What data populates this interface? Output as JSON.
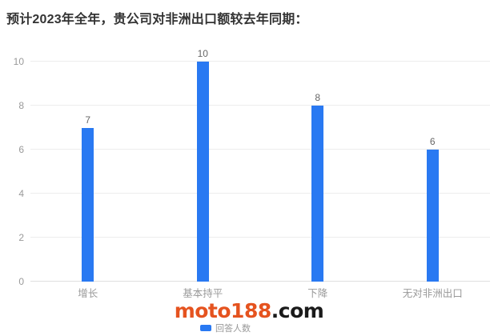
{
  "header": {
    "title": "预计2023年全年，贵公司对非洲出口额较去年同期："
  },
  "chart_data": {
    "type": "bar",
    "title": "预计2023年全年，贵公司对非洲出口额较去年同期：",
    "categories": [
      "增长",
      "基本持平",
      "下降",
      "无对非洲出口"
    ],
    "series": [
      {
        "name": "回答人数",
        "values": [
          7,
          10,
          8,
          6
        ]
      }
    ],
    "xlabel": "",
    "ylabel": "",
    "ylim": [
      0,
      10
    ],
    "yticks": [
      0,
      2,
      4,
      6,
      8,
      10
    ],
    "grid": true,
    "data_labels": true,
    "legend_position": "bottom-center",
    "bar_color": "#2979f2"
  },
  "legend": {
    "label": "回答人数",
    "marker_color": "#2979f2"
  },
  "watermark": {
    "brand": "moto188",
    "suffix": ".com",
    "brand_color": "#e5531f",
    "suffix_color": "#1a1a1a"
  },
  "colors": {
    "bar": "#2979f2",
    "grid": "#ededed",
    "axis": "#dfdfdf",
    "tick_text": "#999999",
    "value_text": "#666666",
    "title_text": "#333333"
  }
}
